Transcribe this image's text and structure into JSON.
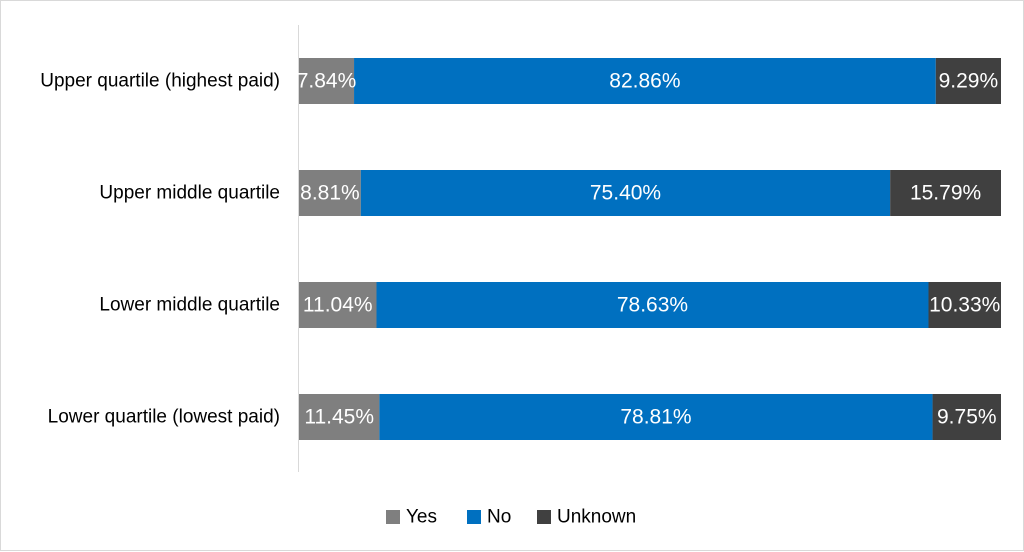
{
  "chart_data": {
    "type": "bar",
    "orientation": "horizontal",
    "stacked": "percent",
    "categories": [
      "Upper quartile (highest paid)",
      "Upper middle quartile",
      "Lower middle quartile",
      "Lower quartile (lowest paid)"
    ],
    "series": [
      {
        "name": "Yes",
        "color": "#7f7f7f",
        "values": [
          7.84,
          8.81,
          11.04,
          11.45
        ],
        "labels": [
          "7.84%",
          "8.81%",
          "11.04%",
          "11.45%"
        ]
      },
      {
        "name": "No",
        "color": "#0070c0",
        "values": [
          82.86,
          75.4,
          78.63,
          78.81
        ],
        "labels": [
          "82.86%",
          "75.40%",
          "78.63%",
          "78.81%"
        ]
      },
      {
        "name": "Unknown",
        "color": "#404040",
        "values": [
          9.29,
          15.79,
          10.33,
          9.75
        ],
        "labels": [
          "9.29%",
          "15.79%",
          "10.33%",
          "9.75%"
        ]
      }
    ],
    "xlim": [
      0,
      100
    ],
    "grid": false,
    "legend": "bottom",
    "title": "",
    "xlabel": "",
    "ylabel": ""
  }
}
